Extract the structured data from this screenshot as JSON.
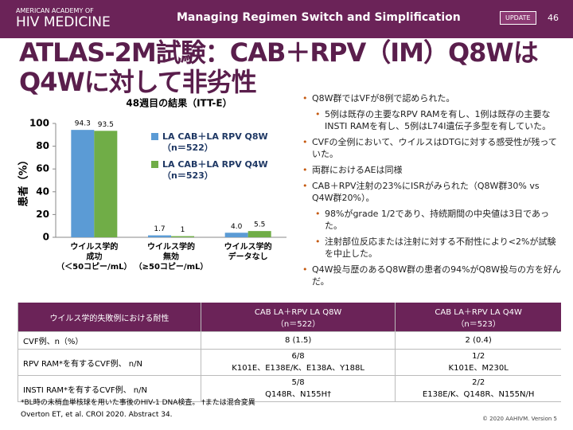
{
  "header": {
    "org_line1": "AMERICAN ACADEMY OF",
    "org_line2": "HIV MEDICINE",
    "title": "Managing Regimen Switch and Simplification",
    "badge": "UPDATE",
    "page": "46"
  },
  "title": "ATLAS-2M試験：CAB＋RPV（IM）Q8Wは\nQ4Wに対して非劣性",
  "chart_data": {
    "type": "bar",
    "title": "48週目の結果（ITT-E）",
    "y_label": "患者（%）",
    "categories": [
      "ウイルス学的\n成功\n（＜50コピー/mL）",
      "ウイルス学的\n無効\n（≥50コピー/mL）",
      "ウイルス学的\nデータなし"
    ],
    "series": [
      {
        "name": "LA CAB＋LA RPV Q8W\n（n＝522）",
        "color": "#5b9bd5",
        "values": [
          94.3,
          1.7,
          4.0
        ],
        "value_labels": [
          "94.3",
          "1.7",
          "4.0"
        ]
      },
      {
        "name": "LA CAB＋LA RPV Q4W\n（n＝523）",
        "color": "#70ad47",
        "values": [
          93.5,
          1.0,
          5.5
        ]
      }
    ],
    "ylim": [
      0,
      100
    ],
    "yticks": [
      0,
      20,
      40,
      60,
      80,
      100
    ]
  },
  "bullets": [
    {
      "text": "Q8W群ではVFが8例で認められた。",
      "sub": [
        "5例は既存の主要なRPV RAMを有し、1例は既存の主要なINSTI RAMを有し、5例はL74I遺伝子多型を有していた。"
      ]
    },
    {
      "text": "CVFの全例において、ウイルスはDTGに対する感受性が残っていた。",
      "sub": []
    },
    {
      "text": "両群におけるAEは同様",
      "sub": []
    },
    {
      "text": "CAB＋RPV注射の23%にISRがみられた（Q8W群30% vs Q4W群20%）。",
      "sub": [
        "98%がgrade 1/2であり、持続期間の中央値は3日であった。",
        "注射部位反応または注射に対する不耐性により<2%が試験を中止した。"
      ]
    },
    {
      "text": "Q4W投与歴のあるQ8W群の患者の94%がQ8W投与の方を好んだ。",
      "sub": []
    }
  ],
  "table": {
    "header": [
      "ウイルス学的失敗例における耐性",
      "CAB LA＋RPV LA Q8W\n（n＝522）",
      "CAB LA＋RPV LA Q4W\n（n＝523）"
    ],
    "rows": [
      [
        "CVF例、n（%）",
        "8 (1.5)",
        "2 (0.4)"
      ],
      [
        "RPV RAM*を有するCVF例、 n/N",
        "6/8\nK101E、E138E/K、E138A、Y188L",
        "1/2\nK101E、M230L"
      ],
      [
        "INSTI RAM*を有するCVF例、 n/N",
        "5/8\nQ148R、N155H†",
        "2/2\nE138E/K、Q148R、N155N/H"
      ]
    ]
  },
  "footnote": "*BL時の未梢血単核球を用いた事後のHIV-1 DNA検査。 †または混合変異",
  "reference": "Overton ET, et al. CROI 2020. Abstract 34.",
  "copyright": "© 2020 AAHIVM. Version 5"
}
